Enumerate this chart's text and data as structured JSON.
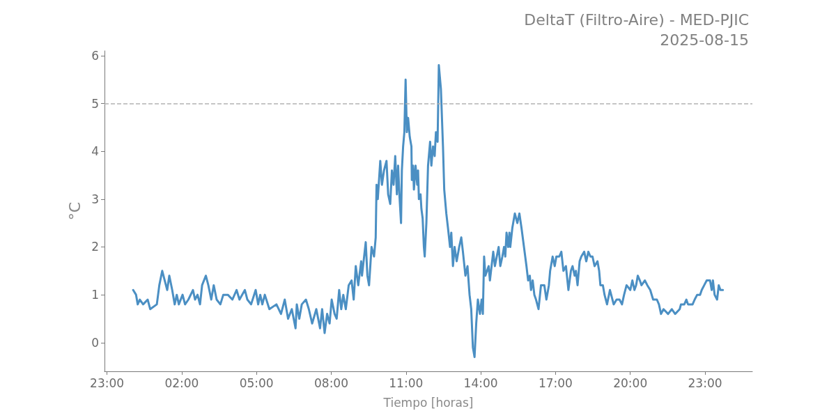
{
  "chart_data": {
    "type": "line",
    "title": "DeltaT (Filtro-Aire) - MED-PJIC",
    "subtitle": "2025-08-15",
    "xlabel": "Tiempo [horas]",
    "ylabel": "°C",
    "x": [
      "2025-08-15T00:03",
      "2025-08-15T00:10",
      "2025-08-15T00:14",
      "2025-08-15T00:19",
      "2025-08-15T00:27",
      "2025-08-15T00:38",
      "2025-08-15T00:44",
      "2025-08-15T01:00",
      "2025-08-15T01:06",
      "2025-08-15T01:13",
      "2025-08-15T01:19",
      "2025-08-15T01:25",
      "2025-08-15T01:30",
      "2025-08-15T01:37",
      "2025-08-15T01:43",
      "2025-08-15T01:48",
      "2025-08-15T01:53",
      "2025-08-15T02:02",
      "2025-08-15T02:08",
      "2025-08-15T02:16",
      "2025-08-15T02:27",
      "2025-08-15T02:32",
      "2025-08-15T02:38",
      "2025-08-15T02:44",
      "2025-08-15T02:49",
      "2025-08-15T02:58",
      "2025-08-15T03:04",
      "2025-08-15T03:11",
      "2025-08-15T03:17",
      "2025-08-15T03:24",
      "2025-08-15T03:33",
      "2025-08-15T03:40",
      "2025-08-15T03:51",
      "2025-08-15T04:02",
      "2025-08-15T04:12",
      "2025-08-15T04:19",
      "2025-08-15T04:32",
      "2025-08-15T04:38",
      "2025-08-15T04:47",
      "2025-08-15T04:58",
      "2025-08-15T05:04",
      "2025-08-15T05:09",
      "2025-08-15T05:14",
      "2025-08-15T05:20",
      "2025-08-15T05:31",
      "2025-08-15T05:48",
      "2025-08-15T05:59",
      "2025-08-15T06:08",
      "2025-08-15T06:16",
      "2025-08-15T06:25",
      "2025-08-15T06:34",
      "2025-08-15T06:37",
      "2025-08-15T06:43",
      "2025-08-15T06:49",
      "2025-08-15T06:59",
      "2025-08-15T07:06",
      "2025-08-15T07:14",
      "2025-08-15T07:24",
      "2025-08-15T07:33",
      "2025-08-15T07:38",
      "2025-08-15T07:44",
      "2025-08-15T07:50",
      "2025-08-15T07:56",
      "2025-08-15T08:01",
      "2025-08-15T08:08",
      "2025-08-15T08:13",
      "2025-08-15T08:19",
      "2025-08-15T08:24",
      "2025-08-15T08:29",
      "2025-08-15T08:35",
      "2025-08-15T08:42",
      "2025-08-15T08:49",
      "2025-08-15T08:54",
      "2025-08-15T08:59",
      "2025-08-15T09:05",
      "2025-08-15T09:12",
      "2025-08-15T09:14",
      "2025-08-15T09:23",
      "2025-08-15T09:27",
      "2025-08-15T09:31",
      "2025-08-15T09:37",
      "2025-08-15T09:43",
      "2025-08-15T09:47",
      "2025-08-15T09:49",
      "2025-08-15T09:52",
      "2025-08-15T09:58",
      "2025-08-15T10:02",
      "2025-08-15T10:07",
      "2025-08-15T10:13",
      "2025-08-15T10:17",
      "2025-08-15T10:22",
      "2025-08-15T10:26",
      "2025-08-15T10:30",
      "2025-08-15T10:34",
      "2025-08-15T10:38",
      "2025-08-15T10:41",
      "2025-08-15T10:44",
      "2025-08-15T10:48",
      "2025-08-15T10:50",
      "2025-08-15T10:53",
      "2025-08-15T10:56",
      "2025-08-15T10:59",
      "2025-08-15T11:02",
      "2025-08-15T11:05",
      "2025-08-15T11:09",
      "2025-08-15T11:13",
      "2025-08-15T11:14",
      "2025-08-15T11:17",
      "2025-08-15T11:19",
      "2025-08-15T11:23",
      "2025-08-15T11:27",
      "2025-08-15T11:29",
      "2025-08-15T11:31",
      "2025-08-15T11:35",
      "2025-08-15T11:37",
      "2025-08-15T11:40",
      "2025-08-15T11:43",
      "2025-08-15T11:45",
      "2025-08-15T11:49",
      "2025-08-15T11:53",
      "2025-08-15T11:58",
      "2025-08-15T12:01",
      "2025-08-15T12:05",
      "2025-08-15T12:09",
      "2025-08-15T12:12",
      "2025-08-15T12:16",
      "2025-08-15T12:19",
      "2025-08-15T12:20",
      "2025-08-15T12:24",
      "2025-08-15T12:29",
      "2025-08-15T12:32",
      "2025-08-15T12:37",
      "2025-08-15T12:41",
      "2025-08-15T12:46",
      "2025-08-15T12:49",
      "2025-08-15T12:53",
      "2025-08-15T12:57",
      "2025-08-15T13:02",
      "2025-08-15T13:08",
      "2025-08-15T13:13",
      "2025-08-15T13:17",
      "2025-08-15T13:23",
      "2025-08-15T13:28",
      "2025-08-15T13:33",
      "2025-08-15T13:37",
      "2025-08-15T13:41",
      "2025-08-15T13:45",
      "2025-08-15T13:49",
      "2025-08-15T13:53",
      "2025-08-15T13:58",
      "2025-08-15T14:02",
      "2025-08-15T14:05",
      "2025-08-15T14:08",
      "2025-08-15T14:11",
      "2025-08-15T14:19",
      "2025-08-15T14:22",
      "2025-08-15T14:26",
      "2025-08-15T14:30",
      "2025-08-15T14:34",
      "2025-08-15T14:43",
      "2025-08-15T14:47",
      "2025-08-15T14:52",
      "2025-08-15T14:56",
      "2025-08-15T14:59",
      "2025-08-15T15:02",
      "2025-08-15T15:06",
      "2025-08-15T15:09",
      "2025-08-15T15:11",
      "2025-08-15T15:16",
      "2025-08-15T15:22",
      "2025-08-15T15:28",
      "2025-08-15T15:33",
      "2025-08-15T15:38",
      "2025-08-15T15:44",
      "2025-08-15T15:50",
      "2025-08-15T15:54",
      "2025-08-15T15:58",
      "2025-08-15T16:01",
      "2025-08-15T16:05",
      "2025-08-15T16:09",
      "2025-08-15T16:13",
      "2025-08-15T16:19",
      "2025-08-15T16:25",
      "2025-08-15T16:33",
      "2025-08-15T16:38",
      "2025-08-15T16:44",
      "2025-08-15T16:47",
      "2025-08-15T16:53",
      "2025-08-15T16:58",
      "2025-08-15T17:02",
      "2025-08-15T17:09",
      "2025-08-15T17:14",
      "2025-08-15T17:19",
      "2025-08-15T17:25",
      "2025-08-15T17:31",
      "2025-08-15T17:37",
      "2025-08-15T17:41",
      "2025-08-15T17:46",
      "2025-08-15T17:49",
      "2025-08-15T17:53",
      "2025-08-15T17:58",
      "2025-08-15T18:02",
      "2025-08-15T18:09",
      "2025-08-15T18:14",
      "2025-08-15T18:19",
      "2025-08-15T18:24",
      "2025-08-15T18:29",
      "2025-08-15T18:34",
      "2025-08-15T18:41",
      "2025-08-15T18:45",
      "2025-08-15T18:48",
      "2025-08-15T18:54",
      "2025-08-15T18:58",
      "2025-08-15T19:04",
      "2025-08-15T19:11",
      "2025-08-15T19:14",
      "2025-08-15T19:20",
      "2025-08-15T19:27",
      "2025-08-15T19:34",
      "2025-08-15T19:40",
      "2025-08-15T19:45",
      "2025-08-15T19:51",
      "2025-08-15T20:00",
      "2025-08-15T20:05",
      "2025-08-15T20:10",
      "2025-08-15T20:14",
      "2025-08-15T20:18",
      "2025-08-15T20:23",
      "2025-08-15T20:27",
      "2025-08-15T20:35",
      "2025-08-15T20:41",
      "2025-08-15T20:48",
      "2025-08-15T20:55",
      "2025-08-15T21:04",
      "2025-08-15T21:09",
      "2025-08-15T21:14",
      "2025-08-15T21:20",
      "2025-08-15T21:31",
      "2025-08-15T21:40",
      "2025-08-15T21:48",
      "2025-08-15T21:59",
      "2025-08-15T22:02",
      "2025-08-15T22:10",
      "2025-08-15T22:15",
      "2025-08-15T22:19",
      "2025-08-15T22:30",
      "2025-08-15T22:35",
      "2025-08-15T22:41",
      "2025-08-15T22:48",
      "2025-08-15T22:52",
      "2025-08-15T22:58",
      "2025-08-15T23:04",
      "2025-08-15T23:12",
      "2025-08-15T23:16",
      "2025-08-15T23:19",
      "2025-08-15T23:23",
      "2025-08-15T23:29",
      "2025-08-15T23:33",
      "2025-08-15T23:37",
      "2025-08-15T23:43"
    ],
    "values": [
      1.1,
      1.0,
      0.8,
      0.9,
      0.8,
      0.9,
      0.7,
      0.8,
      1.2,
      1.5,
      1.3,
      1.1,
      1.4,
      1.1,
      0.8,
      1.0,
      0.8,
      1.0,
      0.8,
      0.9,
      1.1,
      0.9,
      1.0,
      0.8,
      1.2,
      1.4,
      1.2,
      0.9,
      1.2,
      0.9,
      0.8,
      1.0,
      1.0,
      0.9,
      1.1,
      0.9,
      1.1,
      0.9,
      0.8,
      1.1,
      0.8,
      1.0,
      0.8,
      1.0,
      0.7,
      0.8,
      0.6,
      0.9,
      0.5,
      0.7,
      0.3,
      0.8,
      0.5,
      0.8,
      0.9,
      0.7,
      0.4,
      0.7,
      0.3,
      0.7,
      0.2,
      0.6,
      0.4,
      0.9,
      0.6,
      0.5,
      1.1,
      0.7,
      1.0,
      0.7,
      1.2,
      1.3,
      0.9,
      1.6,
      1.2,
      1.7,
      1.4,
      2.1,
      1.4,
      1.2,
      2.0,
      1.8,
      2.2,
      3.3,
      3.0,
      3.8,
      3.3,
      3.6,
      3.8,
      3.1,
      2.9,
      3.6,
      3.3,
      3.9,
      3.1,
      3.7,
      3.1,
      2.5,
      3.6,
      4.1,
      4.4,
      5.5,
      4.4,
      4.7,
      4.3,
      4.1,
      3.4,
      3.7,
      3.2,
      3.7,
      3.3,
      3.6,
      3.0,
      3.1,
      2.8,
      2.6,
      2.0,
      1.8,
      2.5,
      3.7,
      4.2,
      3.7,
      4.1,
      3.9,
      4.4,
      4.2,
      5.8,
      5.8,
      5.3,
      4.1,
      3.2,
      2.7,
      2.4,
      2.0,
      2.3,
      1.6,
      2.0,
      1.7,
      2.0,
      2.2,
      1.9,
      1.4,
      1.6,
      1.0,
      0.7,
      -0.1,
      -0.3,
      0.4,
      0.9,
      0.6,
      0.9,
      0.6,
      1.8,
      1.4,
      1.6,
      1.3,
      1.6,
      1.9,
      1.6,
      2.0,
      1.6,
      1.8,
      2.0,
      1.8,
      2.3,
      2.0,
      2.3,
      2.0,
      2.4,
      2.7,
      2.5,
      2.7,
      2.4,
      2.0,
      1.6,
      1.3,
      1.4,
      1.1,
      1.3,
      1.0,
      0.9,
      0.7,
      1.2,
      1.2,
      0.9,
      1.2,
      1.5,
      1.8,
      1.6,
      1.8,
      1.8,
      1.9,
      1.5,
      1.6,
      1.1,
      1.5,
      1.6,
      1.4,
      1.5,
      1.2,
      1.7,
      1.8,
      1.9,
      1.7,
      1.9,
      1.8,
      1.8,
      1.6,
      1.7,
      1.5,
      1.2,
      1.2,
      1.0,
      0.8,
      1.1,
      1.0,
      0.8,
      0.9,
      0.9,
      0.8,
      1.0,
      1.2,
      1.1,
      1.3,
      1.1,
      1.2,
      1.4,
      1.3,
      1.2,
      1.3,
      1.2,
      1.1,
      0.9,
      0.9,
      0.8,
      0.6,
      0.7,
      0.6,
      0.7,
      0.6,
      0.7,
      0.8,
      0.8,
      0.9,
      0.8,
      0.8,
      0.9,
      1.0,
      1.0,
      1.1,
      1.2,
      1.3,
      1.3,
      1.1,
      1.3,
      1.0,
      0.9,
      1.2,
      1.1,
      1.1
    ],
    "color": "#4b8fc3",
    "marker": "none",
    "line_style": "solid",
    "grid": false,
    "xlim": [
      "2025-08-14T22:54",
      "2025-08-16T00:54"
    ],
    "xticks": [
      {
        "value": "2025-08-14T23:00",
        "label": "23:00"
      },
      {
        "value": "2025-08-15T02:00",
        "label": "02:00"
      },
      {
        "value": "2025-08-15T05:00",
        "label": "05:00"
      },
      {
        "value": "2025-08-15T08:00",
        "label": "08:00"
      },
      {
        "value": "2025-08-15T11:00",
        "label": "11:00"
      },
      {
        "value": "2025-08-15T14:00",
        "label": "14:00"
      },
      {
        "value": "2025-08-15T17:00",
        "label": "17:00"
      },
      {
        "value": "2025-08-15T20:00",
        "label": "20:00"
      },
      {
        "value": "2025-08-15T23:00",
        "label": "23:00"
      }
    ],
    "ylim": [
      -0.6,
      6.1
    ],
    "yticks": [
      0,
      1,
      2,
      3,
      4,
      5,
      6
    ],
    "ref_lines": [
      {
        "axis": "y",
        "value": 5,
        "color": "#b3b3b3",
        "line_style": "dashed"
      }
    ]
  }
}
